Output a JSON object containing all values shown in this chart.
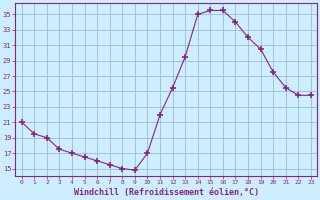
{
  "x": [
    0,
    1,
    2,
    3,
    4,
    5,
    6,
    7,
    8,
    9,
    10,
    11,
    12,
    13,
    14,
    15,
    16,
    17,
    18,
    19,
    20,
    21,
    22,
    23
  ],
  "y": [
    21,
    19.5,
    19,
    17.5,
    17,
    16.5,
    16,
    15.5,
    15,
    14.8,
    17,
    22,
    25.5,
    29.5,
    35,
    35.5,
    35.5,
    34,
    32,
    30.5,
    27.5,
    25.5,
    24.5,
    24.5
  ],
  "line_color": "#882288",
  "marker_color": "#882288",
  "bg_color": "#cceeff",
  "grid_color": "#99bbcc",
  "xlabel": "Windchill (Refroidissement éolien,°C)",
  "ylim": [
    14,
    36.5
  ],
  "yticks": [
    15,
    17,
    19,
    21,
    23,
    25,
    27,
    29,
    31,
    33,
    35
  ],
  "xticks": [
    0,
    1,
    2,
    3,
    4,
    5,
    6,
    7,
    8,
    9,
    10,
    11,
    12,
    13,
    14,
    15,
    16,
    17,
    18,
    19,
    20,
    21,
    22,
    23
  ],
  "xlabel_color": "#882288",
  "tick_color": "#882288",
  "axis_color": "#882288",
  "figsize": [
    3.2,
    2.0
  ],
  "dpi": 100
}
